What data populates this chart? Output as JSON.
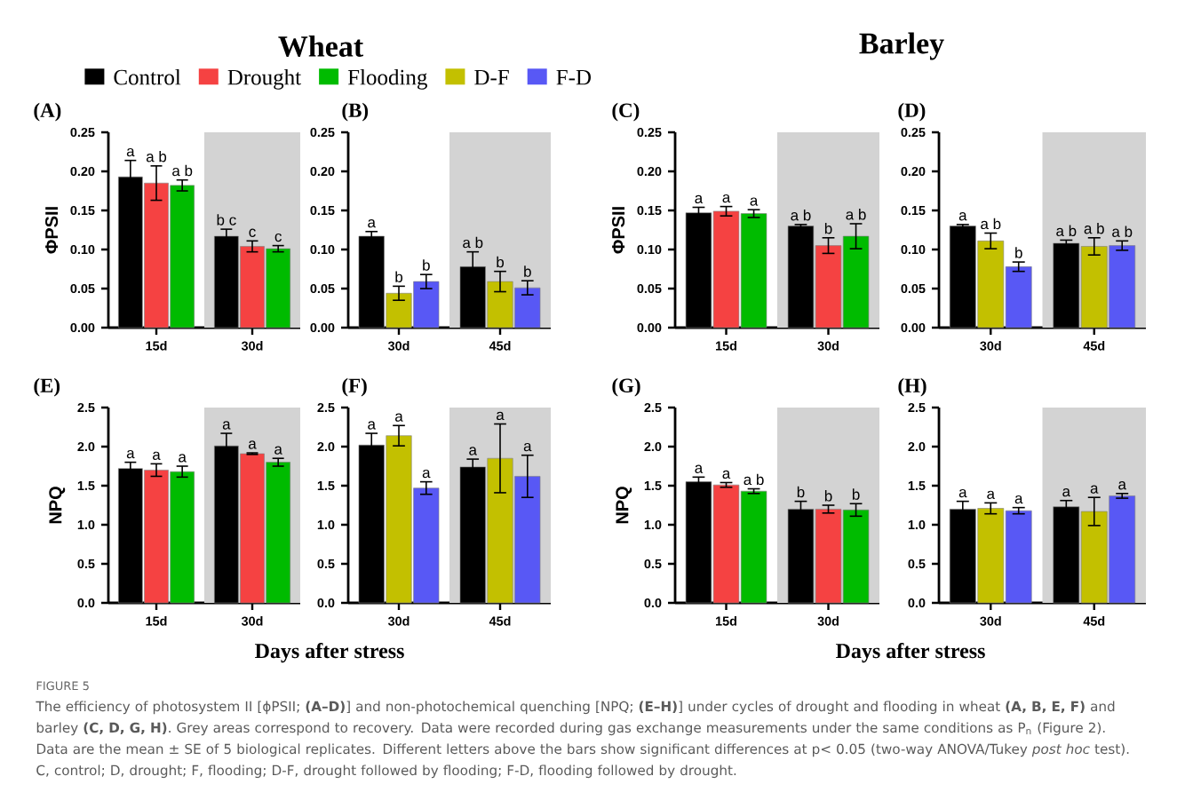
{
  "chart_data": [
    {
      "type": "bar",
      "title": "(A)",
      "annotations": [
        "Wheat"
      ],
      "ylabel": "ΦPSII",
      "categories": [
        "15d",
        "30d"
      ],
      "ylim": [
        0,
        0.25
      ],
      "yticks": [
        {
          "value": 0,
          "label": "0.00"
        },
        {
          "value": 0.05,
          "label": "0.05"
        },
        {
          "value": 0.1,
          "label": "0.10"
        },
        {
          "value": 0.15,
          "label": "0.15"
        },
        {
          "value": 0.2,
          "label": "0.20"
        },
        {
          "value": 0.25,
          "label": "0.25"
        }
      ],
      "bands": [
        {
          "axis": "x",
          "from": "30d",
          "to": "30d",
          "color": "#d3d3d3"
        }
      ],
      "legend": "top",
      "series": [
        {
          "name": "Control",
          "color": "#000000",
          "values": [
            0.193,
            0.117
          ],
          "errors": [
            0.021,
            0.009
          ],
          "value_labels": [
            "a",
            "b c"
          ]
        },
        {
          "name": "Drought",
          "color": "#f54242",
          "values": [
            0.185,
            0.104
          ],
          "errors": [
            0.022,
            0.007
          ],
          "value_labels": [
            "a b",
            "c"
          ]
        },
        {
          "name": "Flooding",
          "color": "#00bb00",
          "values": [
            0.182,
            0.101
          ],
          "errors": [
            0.007,
            0.004
          ],
          "value_labels": [
            "a b",
            "c"
          ]
        }
      ]
    },
    {
      "type": "bar",
      "title": "(B)",
      "categories": [
        "30d",
        "45d"
      ],
      "ylim": [
        0,
        0.25
      ],
      "yticks": [
        {
          "value": 0,
          "label": "0.00"
        },
        {
          "value": 0.05,
          "label": "0.05"
        },
        {
          "value": 0.1,
          "label": "0.10"
        },
        {
          "value": 0.15,
          "label": "0.15"
        },
        {
          "value": 0.2,
          "label": "0.20"
        },
        {
          "value": 0.25,
          "label": "0.25"
        }
      ],
      "bands": [
        {
          "axis": "x",
          "from": "45d",
          "to": "45d",
          "color": "#d3d3d3"
        }
      ],
      "legend": "top",
      "series": [
        {
          "color": "#000000",
          "values": [
            0.117,
            0.078
          ],
          "errors": [
            0.006,
            0.019
          ],
          "value_labels": [
            "a",
            "a b"
          ]
        },
        {
          "name": "D-F",
          "color": "#c3c000",
          "values": [
            0.044,
            0.059
          ],
          "errors": [
            0.009,
            0.013
          ],
          "value_labels": [
            "b",
            "b"
          ]
        },
        {
          "name": "F-D",
          "color": "#5858f5",
          "values": [
            0.059,
            0.051
          ],
          "errors": [
            0.009,
            0.009
          ],
          "value_labels": [
            "b",
            "b"
          ]
        }
      ]
    },
    {
      "type": "bar",
      "title": "(C)",
      "annotations": [
        "Barley"
      ],
      "ylabel": "ΦPSII",
      "categories": [
        "15d",
        "30d"
      ],
      "ylim": [
        0,
        0.25
      ],
      "yticks": [
        {
          "value": 0,
          "label": "0.00"
        },
        {
          "value": 0.05,
          "label": "0.05"
        },
        {
          "value": 0.1,
          "label": "0.10"
        },
        {
          "value": 0.15,
          "label": "0.15"
        },
        {
          "value": 0.2,
          "label": "0.20"
        },
        {
          "value": 0.25,
          "label": "0.25"
        }
      ],
      "bands": [
        {
          "axis": "x",
          "from": "30d",
          "to": "30d",
          "color": "#d3d3d3"
        }
      ],
      "series": [
        {
          "color": "#000000",
          "values": [
            0.147,
            0.13
          ],
          "errors": [
            0.007,
            0.002
          ],
          "value_labels": [
            "a",
            "a b"
          ]
        },
        {
          "color": "#f54242",
          "values": [
            0.149,
            0.105
          ],
          "errors": [
            0.006,
            0.01
          ],
          "value_labels": [
            "a",
            "b"
          ]
        },
        {
          "color": "#00bb00",
          "values": [
            0.146,
            0.117
          ],
          "errors": [
            0.005,
            0.016
          ],
          "value_labels": [
            "a",
            "a b"
          ]
        }
      ]
    },
    {
      "type": "bar",
      "title": "(D)",
      "categories": [
        "30d",
        "45d"
      ],
      "ylim": [
        0,
        0.25
      ],
      "yticks": [
        {
          "value": 0,
          "label": "0.00"
        },
        {
          "value": 0.05,
          "label": "0.05"
        },
        {
          "value": 0.1,
          "label": "0.10"
        },
        {
          "value": 0.15,
          "label": "0.15"
        },
        {
          "value": 0.2,
          "label": "0.20"
        },
        {
          "value": 0.25,
          "label": "0.25"
        }
      ],
      "bands": [
        {
          "axis": "x",
          "from": "45d",
          "to": "45d",
          "color": "#d3d3d3"
        }
      ],
      "series": [
        {
          "color": "#000000",
          "values": [
            0.13,
            0.108
          ],
          "errors": [
            0.002,
            0.004
          ],
          "value_labels": [
            "a",
            "a b"
          ]
        },
        {
          "color": "#c3c000",
          "values": [
            0.111,
            0.104
          ],
          "errors": [
            0.01,
            0.011
          ],
          "value_labels": [
            "a b",
            "a b"
          ]
        },
        {
          "color": "#5858f5",
          "values": [
            0.078,
            0.105
          ],
          "errors": [
            0.006,
            0.006
          ],
          "value_labels": [
            "b",
            "a b"
          ]
        }
      ]
    },
    {
      "type": "bar",
      "title": "(E)",
      "ylabel": "NPQ",
      "xlabel": "Days after stress",
      "categories": [
        "15d",
        "30d"
      ],
      "ylim": [
        0,
        2.5
      ],
      "yticks": [
        {
          "value": 0,
          "label": "0.0"
        },
        {
          "value": 0.5,
          "label": "0.5"
        },
        {
          "value": 1,
          "label": "1.0"
        },
        {
          "value": 1.5,
          "label": "1.5"
        },
        {
          "value": 2,
          "label": "2.0"
        },
        {
          "value": 2.5,
          "label": "2.5"
        }
      ],
      "bands": [
        {
          "axis": "x",
          "from": "30d",
          "to": "30d",
          "color": "#d3d3d3"
        }
      ],
      "series": [
        {
          "color": "#000000",
          "values": [
            1.72,
            2.01
          ],
          "errors": [
            0.08,
            0.16
          ],
          "value_labels": [
            "a",
            "a"
          ]
        },
        {
          "color": "#f54242",
          "values": [
            1.7,
            1.91
          ],
          "errors": [
            0.08,
            0.01
          ],
          "value_labels": [
            "a",
            "a"
          ]
        },
        {
          "color": "#00bb00",
          "values": [
            1.68,
            1.8
          ],
          "errors": [
            0.07,
            0.05
          ],
          "value_labels": [
            "a",
            "a"
          ]
        }
      ]
    },
    {
      "type": "bar",
      "title": "(F)",
      "categories": [
        "30d",
        "45d"
      ],
      "ylim": [
        0,
        2.5
      ],
      "yticks": [
        {
          "value": 0,
          "label": "0.0"
        },
        {
          "value": 0.5,
          "label": "0.5"
        },
        {
          "value": 1,
          "label": "1.0"
        },
        {
          "value": 1.5,
          "label": "1.5"
        },
        {
          "value": 2,
          "label": "2.0"
        },
        {
          "value": 2.5,
          "label": "2.5"
        }
      ],
      "bands": [
        {
          "axis": "x",
          "from": "45d",
          "to": "45d",
          "color": "#d3d3d3"
        }
      ],
      "series": [
        {
          "color": "#000000",
          "values": [
            2.02,
            1.74
          ],
          "errors": [
            0.15,
            0.1
          ],
          "value_labels": [
            "a",
            "a"
          ]
        },
        {
          "color": "#c3c000",
          "values": [
            2.14,
            1.85
          ],
          "errors": [
            0.13,
            0.44
          ],
          "value_labels": [
            "a",
            "a"
          ]
        },
        {
          "color": "#5858f5",
          "values": [
            1.47,
            1.62
          ],
          "errors": [
            0.08,
            0.27
          ],
          "value_labels": [
            "a",
            "a"
          ]
        }
      ]
    },
    {
      "type": "bar",
      "title": "(G)",
      "ylabel": "NPQ",
      "xlabel": "Days after stress",
      "categories": [
        "15d",
        "30d"
      ],
      "ylim": [
        0,
        2.5
      ],
      "yticks": [
        {
          "value": 0,
          "label": "0.0"
        },
        {
          "value": 0.5,
          "label": "0.5"
        },
        {
          "value": 1,
          "label": "1.0"
        },
        {
          "value": 1.5,
          "label": "1.5"
        },
        {
          "value": 2,
          "label": "2.0"
        },
        {
          "value": 2.5,
          "label": "2.5"
        }
      ],
      "bands": [
        {
          "axis": "x",
          "from": "30d",
          "to": "30d",
          "color": "#d3d3d3"
        }
      ],
      "series": [
        {
          "color": "#000000",
          "values": [
            1.55,
            1.2
          ],
          "errors": [
            0.06,
            0.1
          ],
          "value_labels": [
            "a",
            "b"
          ]
        },
        {
          "color": "#f54242",
          "values": [
            1.51,
            1.2
          ],
          "errors": [
            0.03,
            0.05
          ],
          "value_labels": [
            "a",
            "b"
          ]
        },
        {
          "color": "#00bb00",
          "values": [
            1.43,
            1.19
          ],
          "errors": [
            0.03,
            0.08
          ],
          "value_labels": [
            "a b",
            "b"
          ]
        }
      ]
    },
    {
      "type": "bar",
      "title": "(H)",
      "annotations": [
        "FIGURE 5",
        "The efficiency of photosystem II [ϕPSII; **(A–D)**] and non-photochemical quenching [NPQ; **(E–H)**] under cycles of drought and flooding in wheat **(A, B, E, F)** and barley **(C, D, G, H)**. Grey areas correspond to recovery. Data were recorded during gas exchange measurements under the same conditions as P$_{n}$ (Figure 2). Data are the mean ± SE of 5 biological replicates. Different letters above the bars show significant differences at p< 0.05 (two-way ANOVA/Tukey *post hoc* test). C, control; D, drought; F, flooding; D-F, drought followed by flooding; F-D, flooding followed by drought."
      ],
      "categories": [
        "30d",
        "45d"
      ],
      "ylim": [
        0,
        2.5
      ],
      "yticks": [
        {
          "value": 0,
          "label": "0.0"
        },
        {
          "value": 0.5,
          "label": "0.5"
        },
        {
          "value": 1,
          "label": "1.0"
        },
        {
          "value": 1.5,
          "label": "1.5"
        },
        {
          "value": 2,
          "label": "2.0"
        },
        {
          "value": 2.5,
          "label": "2.5"
        }
      ],
      "bands": [
        {
          "axis": "x",
          "from": "45d",
          "to": "45d",
          "color": "#d3d3d3"
        }
      ],
      "series": [
        {
          "color": "#000000",
          "values": [
            1.2,
            1.23
          ],
          "errors": [
            0.1,
            0.08
          ],
          "value_labels": [
            "a",
            "a"
          ]
        },
        {
          "color": "#c3c000",
          "values": [
            1.21,
            1.17
          ],
          "errors": [
            0.07,
            0.18
          ],
          "value_labels": [
            "a",
            "a"
          ]
        },
        {
          "color": "#5858f5",
          "values": [
            1.18,
            1.37
          ],
          "errors": [
            0.04,
            0.03
          ],
          "value_labels": [
            "a",
            "a"
          ]
        }
      ]
    }
  ]
}
